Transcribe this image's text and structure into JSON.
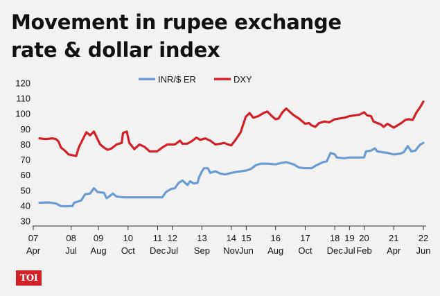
{
  "title": {
    "line1": "Movement in rupee exchange",
    "line2": "rate & dollar index"
  },
  "logo": {
    "text": "TOI",
    "color": "#d12027"
  },
  "chart_data": {
    "type": "line",
    "title": "Movement in rupee exchange rate & dollar index",
    "xlabel": "",
    "ylabel": "",
    "ylim": [
      30,
      120
    ],
    "yticks": [
      120,
      110,
      100,
      90,
      80,
      70,
      60,
      50,
      40,
      30
    ],
    "xlim": [
      2007.25,
      2022.42
    ],
    "grid": false,
    "legend_position": "top-center",
    "x_tick_labels": [
      {
        "year": "07",
        "month": "Apr",
        "x": 2007.25
      },
      {
        "year": "08",
        "month": "Jul",
        "x": 2008.5
      },
      {
        "year": "09",
        "month": "Aug",
        "x": 2009.58
      },
      {
        "year": "10",
        "month": "Oct",
        "x": 2010.75
      },
      {
        "year": "11",
        "month": "Dec",
        "x": 2011.92
      },
      {
        "year": "12",
        "month": "Jul",
        "x": 2012.5
      },
      {
        "year": "13",
        "month": "Sep",
        "x": 2013.67
      },
      {
        "year": "14",
        "month": "Nov",
        "x": 2014.83
      },
      {
        "year": "15",
        "month": "Jun",
        "x": 2015.42
      },
      {
        "year": "16",
        "month": "Aug",
        "x": 2016.58
      },
      {
        "year": "17",
        "month": "Oct",
        "x": 2017.75
      },
      {
        "year": "18",
        "month": "Dec",
        "x": 2018.92
      },
      {
        "year": "19",
        "month": "Jul",
        "x": 2019.5
      },
      {
        "year": "20",
        "month": "Feb",
        "x": 2020.08
      },
      {
        "year": "21",
        "month": "Apr",
        "x": 2021.25
      },
      {
        "year": "22",
        "month": "Jun",
        "x": 2022.42
      }
    ],
    "series": [
      {
        "name": "INR/$ ER",
        "color": "#6a9bd2",
        "points": [
          [
            2007.25,
            42
          ],
          [
            2007.6,
            42.2
          ],
          [
            2007.9,
            41.5
          ],
          [
            2008.1,
            39.8
          ],
          [
            2008.3,
            39.7
          ],
          [
            2008.55,
            39.8
          ],
          [
            2008.62,
            42
          ],
          [
            2008.9,
            43.5
          ],
          [
            2009.05,
            47.5
          ],
          [
            2009.25,
            48
          ],
          [
            2009.4,
            51.5
          ],
          [
            2009.55,
            49
          ],
          [
            2009.8,
            48.5
          ],
          [
            2009.9,
            45
          ],
          [
            2010.0,
            46
          ],
          [
            2010.15,
            48
          ],
          [
            2010.3,
            46
          ],
          [
            2010.6,
            45.5
          ],
          [
            2010.75,
            45.5
          ],
          [
            2011.0,
            45.5
          ],
          [
            2011.5,
            45.5
          ],
          [
            2011.9,
            45.5
          ],
          [
            2012.1,
            45.5
          ],
          [
            2012.25,
            49
          ],
          [
            2012.45,
            51
          ],
          [
            2012.6,
            51.5
          ],
          [
            2012.75,
            55
          ],
          [
            2012.9,
            56.5
          ],
          [
            2013.0,
            55
          ],
          [
            2013.1,
            53.5
          ],
          [
            2013.2,
            56
          ],
          [
            2013.35,
            54.5
          ],
          [
            2013.5,
            55
          ],
          [
            2013.55,
            58.5
          ],
          [
            2013.67,
            62.5
          ],
          [
            2013.75,
            64.5
          ],
          [
            2013.9,
            64.5
          ],
          [
            2014.0,
            61.5
          ],
          [
            2014.2,
            62.5
          ],
          [
            2014.4,
            61
          ],
          [
            2014.6,
            60.5
          ],
          [
            2014.83,
            61.5
          ],
          [
            2015.0,
            62
          ],
          [
            2015.42,
            63
          ],
          [
            2015.6,
            64
          ],
          [
            2015.8,
            66.5
          ],
          [
            2016.0,
            67.5
          ],
          [
            2016.3,
            67.5
          ],
          [
            2016.58,
            67
          ],
          [
            2016.8,
            68
          ],
          [
            2017.0,
            68.5
          ],
          [
            2017.3,
            67
          ],
          [
            2017.5,
            65
          ],
          [
            2017.75,
            64.5
          ],
          [
            2018.0,
            64.5
          ],
          [
            2018.2,
            66.5
          ],
          [
            2018.45,
            68.5
          ],
          [
            2018.6,
            69
          ],
          [
            2018.75,
            74.5
          ],
          [
            2018.92,
            73.5
          ],
          [
            2019.0,
            71.5
          ],
          [
            2019.3,
            71
          ],
          [
            2019.5,
            71.5
          ],
          [
            2019.8,
            71.5
          ],
          [
            2020.0,
            71.5
          ],
          [
            2020.08,
            71.5
          ],
          [
            2020.15,
            75.5
          ],
          [
            2020.35,
            76
          ],
          [
            2020.5,
            77.5
          ],
          [
            2020.6,
            75.5
          ],
          [
            2020.8,
            75
          ],
          [
            2021.0,
            74.5
          ],
          [
            2021.25,
            73.5
          ],
          [
            2021.5,
            74
          ],
          [
            2021.65,
            75
          ],
          [
            2021.8,
            79
          ],
          [
            2021.95,
            75.5
          ],
          [
            2022.1,
            76
          ],
          [
            2022.3,
            80
          ],
          [
            2022.42,
            81
          ]
        ]
      },
      {
        "name": "DXY",
        "color": "#d12027",
        "points": [
          [
            2007.25,
            84
          ],
          [
            2007.5,
            83.5
          ],
          [
            2007.75,
            84
          ],
          [
            2007.9,
            83.5
          ],
          [
            2008.0,
            82
          ],
          [
            2008.1,
            78
          ],
          [
            2008.25,
            76
          ],
          [
            2008.4,
            73.5
          ],
          [
            2008.55,
            73
          ],
          [
            2008.7,
            72.5
          ],
          [
            2008.8,
            78
          ],
          [
            2008.95,
            83
          ],
          [
            2009.1,
            88
          ],
          [
            2009.25,
            86
          ],
          [
            2009.4,
            88.5
          ],
          [
            2009.5,
            85
          ],
          [
            2009.65,
            80
          ],
          [
            2009.8,
            78
          ],
          [
            2009.95,
            76.5
          ],
          [
            2010.1,
            77.5
          ],
          [
            2010.3,
            80
          ],
          [
            2010.5,
            81
          ],
          [
            2010.55,
            87.5
          ],
          [
            2010.7,
            88.5
          ],
          [
            2010.8,
            81
          ],
          [
            2011.0,
            77
          ],
          [
            2011.2,
            80
          ],
          [
            2011.4,
            78.5
          ],
          [
            2011.6,
            75.5
          ],
          [
            2011.9,
            75.5
          ],
          [
            2012.1,
            78
          ],
          [
            2012.3,
            80
          ],
          [
            2012.6,
            80
          ],
          [
            2012.8,
            82.5
          ],
          [
            2012.9,
            80.5
          ],
          [
            2013.1,
            80.5
          ],
          [
            2013.3,
            82.5
          ],
          [
            2013.45,
            84.5
          ],
          [
            2013.6,
            83
          ],
          [
            2013.8,
            84
          ],
          [
            2014.0,
            82.5
          ],
          [
            2014.2,
            80
          ],
          [
            2014.4,
            80.5
          ],
          [
            2014.55,
            81
          ],
          [
            2014.7,
            80
          ],
          [
            2014.83,
            79.5
          ],
          [
            2015.0,
            83
          ],
          [
            2015.2,
            88
          ],
          [
            2015.4,
            98
          ],
          [
            2015.55,
            100.5
          ],
          [
            2015.7,
            97.5
          ],
          [
            2015.9,
            98.5
          ],
          [
            2016.1,
            100.5
          ],
          [
            2016.25,
            101.5
          ],
          [
            2016.4,
            99
          ],
          [
            2016.58,
            96.5
          ],
          [
            2016.7,
            97
          ],
          [
            2016.85,
            101
          ],
          [
            2017.0,
            103.5
          ],
          [
            2017.1,
            102
          ],
          [
            2017.3,
            99
          ],
          [
            2017.5,
            97
          ],
          [
            2017.75,
            93.5
          ],
          [
            2017.9,
            94
          ],
          [
            2018.0,
            92.5
          ],
          [
            2018.15,
            91.5
          ],
          [
            2018.3,
            94
          ],
          [
            2018.5,
            95
          ],
          [
            2018.7,
            94.5
          ],
          [
            2018.92,
            96.5
          ],
          [
            2019.1,
            97
          ],
          [
            2019.3,
            97.5
          ],
          [
            2019.5,
            98.5
          ],
          [
            2019.7,
            99
          ],
          [
            2019.9,
            99.5
          ],
          [
            2020.08,
            101
          ],
          [
            2020.2,
            99
          ],
          [
            2020.35,
            98.5
          ],
          [
            2020.45,
            95
          ],
          [
            2020.6,
            94
          ],
          [
            2020.75,
            93
          ],
          [
            2020.85,
            91.5
          ],
          [
            2021.0,
            93.5
          ],
          [
            2021.15,
            92
          ],
          [
            2021.25,
            91
          ],
          [
            2021.4,
            92.5
          ],
          [
            2021.55,
            94
          ],
          [
            2021.7,
            96
          ],
          [
            2021.85,
            96.5
          ],
          [
            2022.0,
            96
          ],
          [
            2022.15,
            101
          ],
          [
            2022.3,
            104.5
          ],
          [
            2022.42,
            108
          ]
        ]
      }
    ]
  }
}
